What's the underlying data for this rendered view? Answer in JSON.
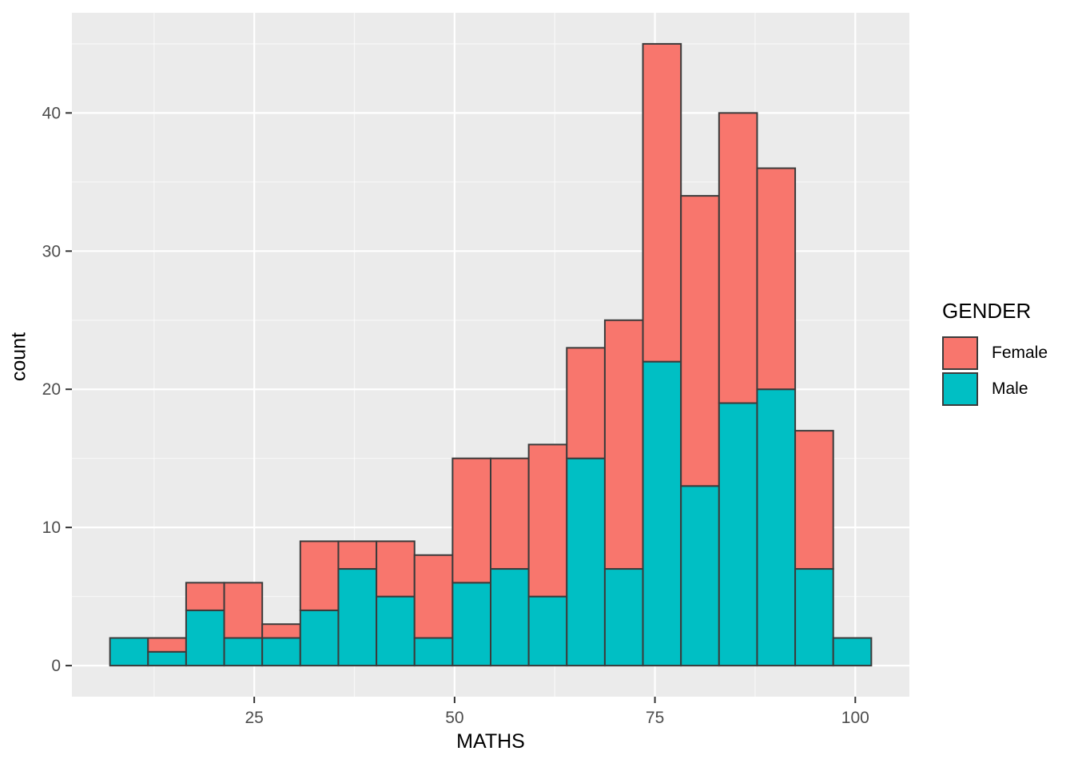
{
  "figure": {
    "background": "#FFFFFF"
  },
  "chart_data": {
    "type": "bar",
    "subtype": "stacked-histogram",
    "title": "",
    "xlabel": "MATHS",
    "ylabel": "count",
    "bin_start": 7,
    "bin_width": 4.75,
    "bin_count": 20,
    "series": [
      {
        "name": "Male",
        "color": "#00BFC4",
        "values": [
          2,
          1,
          4,
          2,
          2,
          4,
          7,
          5,
          2,
          6,
          7,
          5,
          15,
          7,
          22,
          13,
          19,
          20,
          7,
          2
        ]
      },
      {
        "name": "Female",
        "color": "#F8766D",
        "values": [
          0,
          1,
          2,
          4,
          1,
          5,
          2,
          4,
          6,
          9,
          8,
          11,
          8,
          18,
          23,
          21,
          21,
          16,
          10,
          0
        ]
      }
    ],
    "stack_order_bottom_to_top": [
      "Male",
      "Female"
    ],
    "stack_totals": [
      2,
      2,
      6,
      6,
      3,
      9,
      9,
      9,
      8,
      15,
      15,
      16,
      23,
      25,
      45,
      34,
      40,
      36,
      17,
      2
    ],
    "x_ticks": [
      25,
      50,
      75,
      100
    ],
    "y_ticks": [
      0,
      10,
      20,
      30,
      40
    ],
    "x_minor_ticks": [
      12.5,
      37.5,
      62.5,
      87.5
    ],
    "y_minor_ticks": [
      5,
      15,
      25,
      35,
      45
    ],
    "xlim": [
      2.25,
      106.75
    ],
    "ylim": [
      -2.25,
      47.25
    ],
    "grid": "on",
    "panel_background": "#EBEBEB",
    "grid_major_color": "#FFFFFF",
    "grid_minor_color": "#FFFFFF",
    "bar_border_color": "#3B3B3B",
    "tick_mark_color": "#333333",
    "tick_label_color": "#4D4D4D",
    "axis_title_color": "#000000",
    "legend": {
      "title": "GENDER",
      "position": "right",
      "items": [
        {
          "label": "Female",
          "color": "#F8766D"
        },
        {
          "label": "Male",
          "color": "#00BFC4"
        }
      ]
    }
  }
}
